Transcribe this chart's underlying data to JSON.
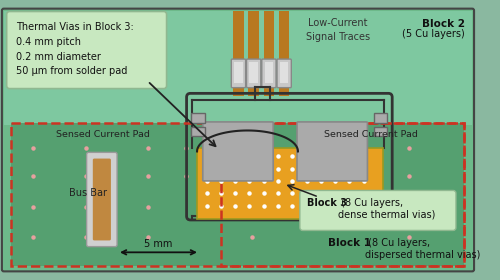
{
  "fig_width": 5.0,
  "fig_height": 2.8,
  "dpi": 100,
  "outer_bg": "#8ab8a0",
  "board_green": "#6db98a",
  "block1_green": "#55a070",
  "block2_green": "#7ec8a0",
  "orange_pad": "#e8a020",
  "gray_chip": "#aaaaaa",
  "gray_chip_edge": "#888888",
  "gray_light": "#cccccc",
  "brown_bus": "#c08840",
  "copper_brown": "#b87820",
  "ann_box_fill": "#c8e8c0",
  "ann_box_edge": "#90b890",
  "block3_box_fill": "#c8e8c0",
  "block3_box_edge": "#90b890",
  "dashed_red": "#cc3322",
  "title_text": "Block 2 (5 Cu layers)",
  "annotation_text": "Thermal Vias in Block 3:\n0.4 mm pitch\n0.2 mm diameter\n50 μm from solder pad",
  "signal_label": "Low-Current\nSignal Traces",
  "block3_label_bold": "Block 3",
  "block3_label_rest": " (8 Cu layers,\ndense thermal vias)",
  "block1_label_bold": "Block 1",
  "block1_label_rest": " (8 Cu layers,\ndispersed thermal vias)",
  "sensed_left": "Sensed Current Pad",
  "sensed_right": "Sensed Current Pad",
  "busbar_label": "Bus Bar",
  "dim_label": "5 mm"
}
